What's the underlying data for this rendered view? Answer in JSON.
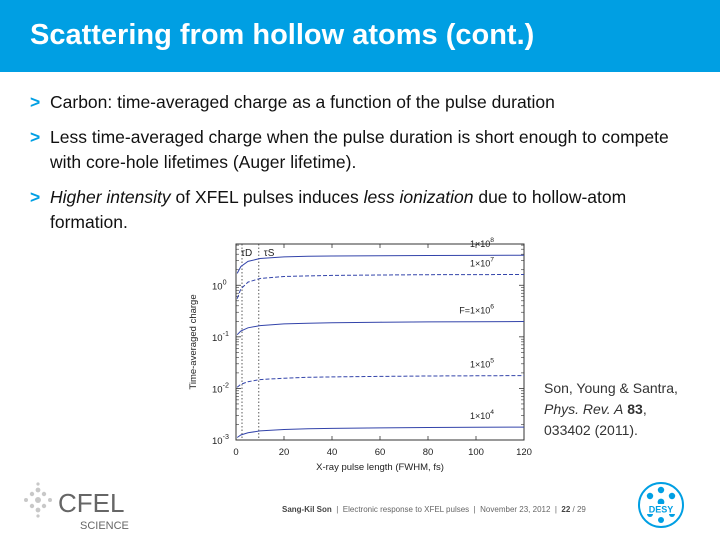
{
  "slide": {
    "title": "Scattering from hollow atoms (cont.)",
    "bullets": [
      {
        "marker": ">",
        "text": "Carbon: time-averaged charge as a function of the pulse duration"
      },
      {
        "marker": ">",
        "text": "Less time-averaged charge when the pulse duration is short enough to compete with core-hole lifetimes (Auger lifetime)."
      },
      {
        "marker": ">",
        "parts": {
          "a": "Higher intensity",
          "b": " of XFEL pulses induces ",
          "c": "less ionization",
          "d": " due to hollow-atom formation."
        }
      }
    ],
    "citation": {
      "authors": "Son, Young & Santra,",
      "journal": "Phys. Rev. A",
      "volume": "83",
      "pages": "033402 (2011)."
    },
    "footer": {
      "author": "Sang-Kil Son",
      "talk": "Electronic response to XFEL pulses",
      "date": "November 23, 2012",
      "page": "22",
      "total": "/ 29"
    },
    "logos": {
      "cfel_text": "CFEL",
      "cfel_sub": "SCIENCE",
      "desy_text": "DESY"
    },
    "colors": {
      "accent": "#009fe3",
      "line": "#3344aa"
    }
  },
  "chart_data": {
    "type": "line",
    "xlabel": "X-ray pulse length (FWHM, fs)",
    "ylabel": "Time-averaged charge",
    "xlim": [
      0,
      120
    ],
    "ylim_log10": [
      -3,
      0.8
    ],
    "yscale": "log",
    "x_ticks": [
      0,
      20,
      40,
      60,
      80,
      100,
      120
    ],
    "y_ticks": [
      {
        "base": "10",
        "exp": "0",
        "value": 1
      },
      {
        "base": "10",
        "exp": "-1",
        "value": 0.1
      },
      {
        "base": "10",
        "exp": "-2",
        "value": 0.01
      },
      {
        "base": "10",
        "exp": "-3",
        "value": 0.001
      }
    ],
    "vlines": [
      {
        "label": "τD",
        "x": 2.5
      },
      {
        "label": "τS",
        "x": 9.5
      }
    ],
    "x": [
      0.5,
      2,
      5,
      10,
      20,
      30,
      40,
      60,
      80,
      100,
      120
    ],
    "series": [
      {
        "name": "1×10^8",
        "label_base": "1×10",
        "label_exp": "8",
        "style": "solid",
        "values": [
          1.7,
          2.3,
          2.9,
          3.3,
          3.55,
          3.65,
          3.7,
          3.75,
          3.78,
          3.8,
          3.82
        ]
      },
      {
        "name": "1×10^7",
        "label_base": "1×10",
        "label_exp": "7",
        "style": "dashed",
        "values": [
          0.55,
          0.85,
          1.15,
          1.35,
          1.48,
          1.52,
          1.55,
          1.58,
          1.6,
          1.61,
          1.62
        ]
      },
      {
        "name": "F=1×10^6",
        "label_base": "F=1×10",
        "label_exp": "6",
        "style": "solid",
        "values": [
          0.11,
          0.13,
          0.15,
          0.165,
          0.178,
          0.184,
          0.188,
          0.192,
          0.195,
          0.197,
          0.198
        ]
      },
      {
        "name": "1×10^5",
        "label_base": "1×10",
        "label_exp": "5",
        "style": "dashed",
        "values": [
          0.0105,
          0.012,
          0.0135,
          0.0148,
          0.0158,
          0.0164,
          0.0167,
          0.0171,
          0.0174,
          0.0176,
          0.0177
        ]
      },
      {
        "name": "1×10^4",
        "label_base": "1×10",
        "label_exp": "4",
        "style": "solid",
        "values": [
          0.00112,
          0.00125,
          0.00138,
          0.0015,
          0.0016,
          0.00165,
          0.00168,
          0.00172,
          0.00175,
          0.00177,
          0.00178
        ]
      }
    ]
  }
}
